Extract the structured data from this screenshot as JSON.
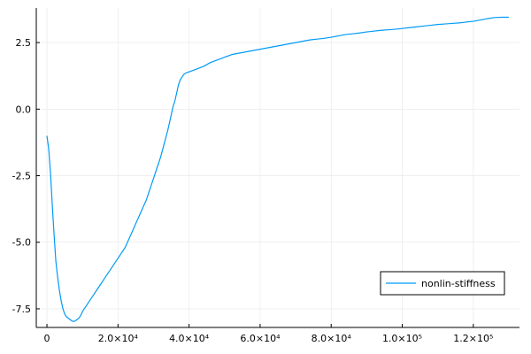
{
  "chart_data": {
    "type": "line",
    "title": "",
    "xlabel": "",
    "ylabel": "",
    "xlim": [
      -3000,
      133000
    ],
    "ylim": [
      -8.2,
      3.8
    ],
    "grid": true,
    "legend_position": "bottom-right",
    "x_ticks": [
      {
        "value": 0,
        "label": "0"
      },
      {
        "value": 20000,
        "label": "2.0×10⁴"
      },
      {
        "value": 40000,
        "label": "4.0×10⁴"
      },
      {
        "value": 60000,
        "label": "6.0×10⁴"
      },
      {
        "value": 80000,
        "label": "8.0×10⁴"
      },
      {
        "value": 100000,
        "label": "1.0×10⁵"
      },
      {
        "value": 120000,
        "label": "1.2×10⁵"
      }
    ],
    "y_ticks": [
      {
        "value": 2.5,
        "label": "2.5"
      },
      {
        "value": 0.0,
        "label": "0.0"
      },
      {
        "value": -2.5,
        "label": "-2.5"
      },
      {
        "value": -5.0,
        "label": "-5.0"
      },
      {
        "value": -7.5,
        "label": "-7.5"
      }
    ],
    "series": [
      {
        "name": "nonlin-stiffness",
        "color": "#009AF9",
        "x": [
          0,
          500,
          1000,
          1500,
          2000,
          2500,
          3000,
          3500,
          4000,
          4500,
          5000,
          5500,
          6000,
          6500,
          7000,
          7500,
          8000,
          8500,
          9000,
          9500,
          10000,
          11000,
          12000,
          13000,
          14000,
          15000,
          16000,
          17000,
          18000,
          19000,
          20000,
          21000,
          22000,
          23000,
          24000,
          25000,
          26000,
          27000,
          28000,
          29000,
          30000,
          31000,
          32000,
          33000,
          34000,
          34500,
          35000,
          35500,
          36000,
          36500,
          37000,
          37500,
          38000,
          38500,
          39000,
          40000,
          42000,
          44000,
          46000,
          48000,
          50000,
          52000,
          54000,
          56000,
          58000,
          60000,
          62000,
          64000,
          66000,
          68000,
          70000,
          72000,
          74000,
          76000,
          78000,
          80000,
          82000,
          84000,
          86000,
          88000,
          90000,
          92000,
          94000,
          96000,
          98000,
          100000,
          102000,
          104000,
          106000,
          108000,
          110000,
          112000,
          114000,
          116000,
          118000,
          120000,
          122000,
          124000,
          126000,
          128000,
          130000
        ],
        "y": [
          -1.0,
          -1.5,
          -2.4,
          -3.6,
          -4.7,
          -5.7,
          -6.3,
          -6.8,
          -7.2,
          -7.5,
          -7.7,
          -7.8,
          -7.85,
          -7.9,
          -7.95,
          -7.98,
          -7.95,
          -7.9,
          -7.85,
          -7.75,
          -7.6,
          -7.4,
          -7.2,
          -7.0,
          -6.8,
          -6.6,
          -6.4,
          -6.2,
          -6.0,
          -5.8,
          -5.6,
          -5.4,
          -5.2,
          -4.9,
          -4.6,
          -4.3,
          -4.0,
          -3.7,
          -3.4,
          -3.0,
          -2.6,
          -2.2,
          -1.8,
          -1.3,
          -0.8,
          -0.5,
          -0.2,
          0.1,
          0.3,
          0.6,
          0.9,
          1.1,
          1.2,
          1.3,
          1.35,
          1.4,
          1.5,
          1.6,
          1.75,
          1.85,
          1.95,
          2.05,
          2.1,
          2.15,
          2.2,
          2.25,
          2.3,
          2.35,
          2.4,
          2.45,
          2.5,
          2.55,
          2.6,
          2.63,
          2.66,
          2.7,
          2.75,
          2.8,
          2.83,
          2.86,
          2.9,
          2.93,
          2.96,
          2.98,
          3.0,
          3.03,
          3.06,
          3.09,
          3.12,
          3.15,
          3.18,
          3.2,
          3.22,
          3.24,
          3.27,
          3.3,
          3.35,
          3.4,
          3.44,
          3.45,
          3.45
        ]
      }
    ]
  }
}
